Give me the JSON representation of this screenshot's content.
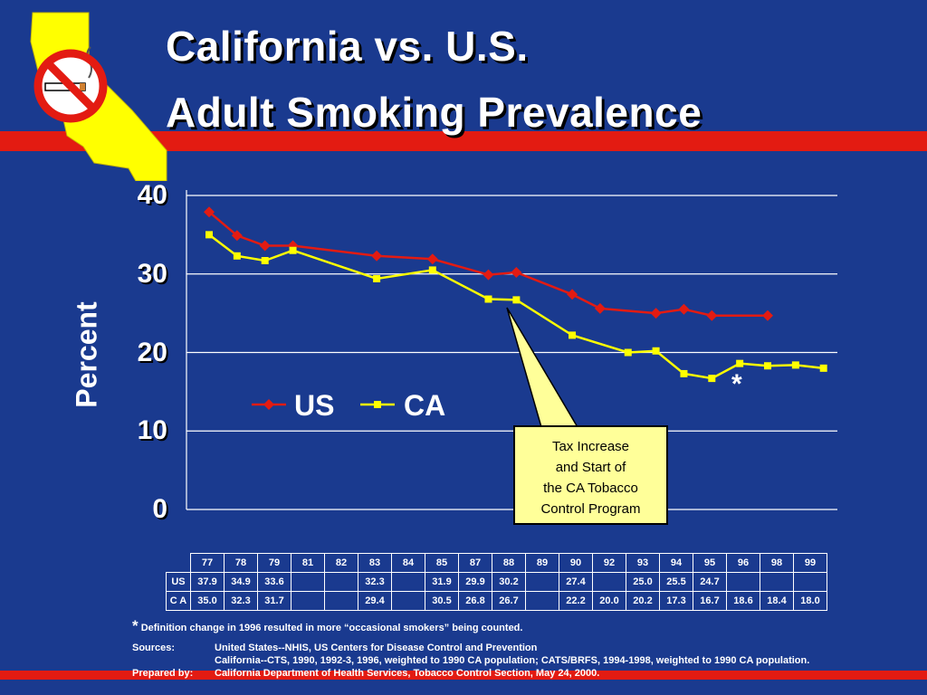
{
  "title": {
    "line1": "California vs. U.S.",
    "line2": "Adult Smoking Prevalence"
  },
  "logo_icon": "california-no-smoking-icon",
  "colors": {
    "background": "#1a3a8f",
    "stripe": "#e31b12",
    "us_series": "#e31b12",
    "ca_series": "#ffff00",
    "callout": "#ffff99"
  },
  "chart_data": {
    "type": "line",
    "ylabel": "Percent",
    "xlabel": "",
    "ylim": [
      0,
      40
    ],
    "yticks": [
      "0",
      "10",
      "20",
      "30",
      "40"
    ],
    "grid": true,
    "legend_position": "center-left",
    "series": [
      {
        "name": "US",
        "color": "#e31b12",
        "marker": "diamond",
        "points": [
          [
            77,
            37.9
          ],
          [
            78,
            34.9
          ],
          [
            79,
            33.6
          ],
          [
            80,
            33.6
          ],
          [
            83,
            32.3
          ],
          [
            85,
            31.9
          ],
          [
            87,
            29.9
          ],
          [
            88,
            30.2
          ],
          [
            90,
            27.4
          ],
          [
            91,
            25.6
          ],
          [
            93,
            25.0
          ],
          [
            94,
            25.5
          ],
          [
            95,
            24.7
          ],
          [
            97,
            24.7
          ]
        ]
      },
      {
        "name": "CA",
        "color": "#ffff00",
        "marker": "square",
        "points": [
          [
            77,
            35.0
          ],
          [
            78,
            32.3
          ],
          [
            79,
            31.7
          ],
          [
            80,
            33.0
          ],
          [
            83,
            29.4
          ],
          [
            85,
            30.5
          ],
          [
            87,
            26.8
          ],
          [
            88,
            26.7
          ],
          [
            90,
            22.2
          ],
          [
            92,
            20.0
          ],
          [
            93,
            20.2
          ],
          [
            94,
            17.3
          ],
          [
            95,
            16.7
          ],
          [
            96,
            18.6
          ],
          [
            97,
            18.3
          ],
          [
            98,
            18.4
          ],
          [
            99,
            18.0
          ]
        ]
      }
    ],
    "annotations": {
      "asterisk": "*",
      "callout": [
        "Tax Increase",
        "and Start of",
        "the CA Tobacco",
        "Control Program"
      ]
    }
  },
  "table": {
    "years": [
      "77",
      "78",
      "79",
      "81",
      "82",
      "83",
      "84",
      "85",
      "87",
      "88",
      "89",
      "90",
      "92",
      "93",
      "94",
      "95",
      "96",
      "98",
      "99"
    ],
    "rows": [
      {
        "label": "US",
        "values": [
          "37.9",
          "34.9",
          "33.6",
          "",
          "",
          "32.3",
          "",
          "31.9",
          "29.9",
          "30.2",
          "",
          "27.4",
          "",
          "25.0",
          "25.5",
          "24.7",
          "",
          "",
          ""
        ]
      },
      {
        "label": "C A",
        "values": [
          "35.0",
          "32.3",
          "31.7",
          "",
          "",
          "29.4",
          "",
          "30.5",
          "26.8",
          "26.7",
          "",
          "22.2",
          "20.0",
          "20.2",
          "17.3",
          "16.7",
          "18.6",
          "18.4",
          "18.0"
        ]
      }
    ]
  },
  "footnote": {
    "mark": "*",
    "text": "Definition change in 1996 resulted in more “occasional smokers” being counted."
  },
  "sources": {
    "label": "Sources:",
    "line1": "United States--NHIS, US Centers for Disease Control and Prevention",
    "line2": "California--CTS, 1990, 1992-3, 1996, weighted to 1990 CA population; CATS/BRFS, 1994-1998, weighted to 1990 CA population."
  },
  "prepared_by": {
    "label": "Prepared by:",
    "text": "California Department of Health Services, Tobacco Control Section, May 24, 2000."
  }
}
